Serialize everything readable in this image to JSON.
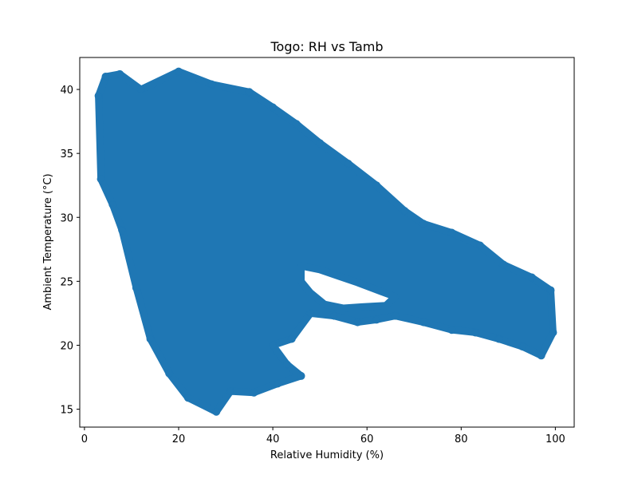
{
  "chart_data": {
    "type": "scatter",
    "title": "Togo: RH vs Tamb",
    "xlabel": "Relative Humidity (%)",
    "ylabel": "Ambient Temperature (°C)",
    "xlim": [
      -1,
      104
    ],
    "ylim": [
      13.6,
      42.5
    ],
    "xticks": [
      0,
      20,
      40,
      60,
      80,
      100
    ],
    "yticks": [
      15,
      20,
      25,
      30,
      35,
      40
    ],
    "grid": false,
    "legend": "none",
    "marker_color": "#1f77b4",
    "marker_alpha": 0.5,
    "point_cloud_envelope": {
      "main_region": [
        [
          4.5,
          41.0
        ],
        [
          7.5,
          41.2
        ],
        [
          12,
          40.0
        ],
        [
          20,
          41.4
        ],
        [
          27,
          40.4
        ],
        [
          35,
          39.8
        ],
        [
          40,
          38.6
        ],
        [
          45,
          37.3
        ],
        [
          50,
          35.8
        ],
        [
          56,
          34.2
        ],
        [
          62,
          32.5
        ],
        [
          68,
          30.5
        ],
        [
          72,
          29.5
        ],
        [
          78,
          28.8
        ],
        [
          84,
          27.8
        ],
        [
          89,
          26.3
        ],
        [
          95,
          25.3
        ],
        [
          99,
          24.3
        ],
        [
          99.5,
          21.0
        ],
        [
          97,
          19.2
        ],
        [
          93,
          19.9
        ],
        [
          88,
          20.5
        ],
        [
          83,
          21.0
        ],
        [
          78,
          21.2
        ],
        [
          72,
          21.8
        ],
        [
          66,
          22.3
        ],
        [
          62,
          22.0
        ],
        [
          58,
          21.8
        ],
        [
          53,
          22.3
        ],
        [
          48,
          22.5
        ],
        [
          44,
          20.5
        ],
        [
          40,
          20.0
        ],
        [
          43,
          18.5
        ],
        [
          46,
          17.6
        ],
        [
          41,
          17.0
        ],
        [
          36,
          16.3
        ],
        [
          31,
          16.4
        ],
        [
          28,
          14.8
        ],
        [
          22,
          15.9
        ],
        [
          18,
          17.8
        ],
        [
          14,
          20.5
        ],
        [
          11,
          24.5
        ],
        [
          8,
          29.0
        ],
        [
          6,
          31.0
        ],
        [
          3.5,
          33.0
        ],
        [
          3.0,
          39.5
        ]
      ],
      "inner_gap_region": [
        [
          46,
          26.2
        ],
        [
          50,
          25.9
        ],
        [
          54,
          25.4
        ],
        [
          58,
          24.9
        ],
        [
          63,
          24.2
        ],
        [
          66,
          23.8
        ],
        [
          64,
          23.1
        ],
        [
          59,
          23.0
        ],
        [
          55,
          22.9
        ],
        [
          51,
          23.2
        ],
        [
          48,
          24.1
        ],
        [
          46,
          25.0
        ]
      ]
    }
  }
}
